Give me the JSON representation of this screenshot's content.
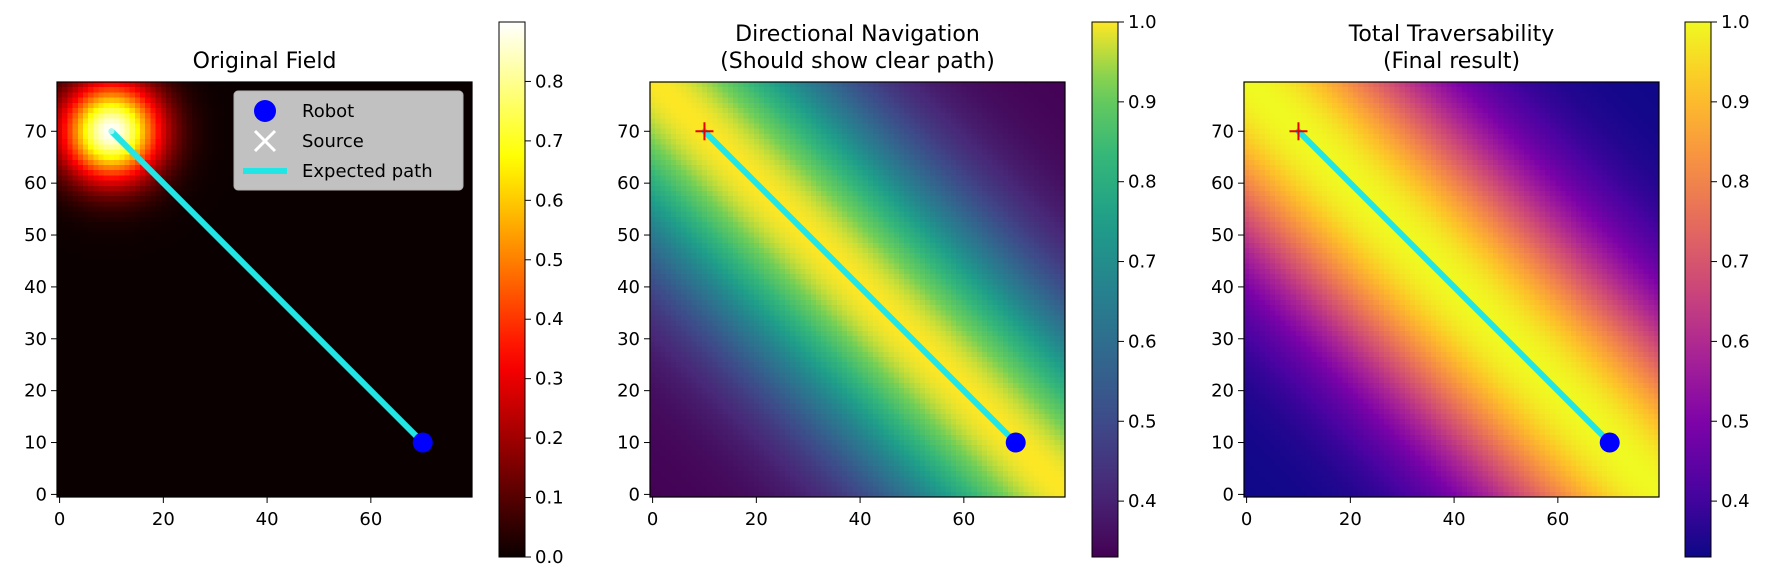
{
  "chart_data": [
    {
      "type": "heatmap",
      "title": "Original Field",
      "colormap": "hot",
      "xticks": [
        0,
        20,
        40,
        60
      ],
      "yticks": [
        0,
        10,
        20,
        30,
        40,
        50,
        60,
        70
      ],
      "xlim": [
        0,
        79
      ],
      "ylim": [
        0,
        79
      ],
      "field": {
        "kind": "gaussian_source",
        "center": [
          10,
          70
        ],
        "peak": 0.9,
        "sigma": 6.5
      },
      "colorbar": {
        "min": 0.0,
        "max": 0.9,
        "ticks": [
          "0.0",
          "0.1",
          "0.2",
          "0.3",
          "0.4",
          "0.5",
          "0.6",
          "0.7",
          "0.8"
        ]
      },
      "markers": {
        "robot": [
          70,
          10
        ],
        "source": [
          10,
          70
        ],
        "path": [
          [
            10,
            70
          ],
          [
            70,
            10
          ]
        ]
      },
      "legend": {
        "placement": "upper-right",
        "entries": [
          {
            "label": "Robot",
            "symbol": "circle",
            "color": "#0000ff"
          },
          {
            "label": "Source",
            "symbol": "x",
            "color": "#ffffff"
          },
          {
            "label": "Expected path",
            "symbol": "line",
            "color": "#22e5e5"
          }
        ]
      }
    },
    {
      "type": "heatmap",
      "title": "Directional Navigation",
      "subtitle": "(Should show clear path)",
      "colormap": "viridis",
      "xticks": [
        0,
        20,
        40,
        60
      ],
      "yticks": [
        0,
        10,
        20,
        30,
        40,
        50,
        60,
        70
      ],
      "xlim": [
        0,
        79
      ],
      "ylim": [
        0,
        79
      ],
      "field": {
        "kind": "corridor",
        "from": [
          10,
          70
        ],
        "to": [
          70,
          10
        ],
        "min": 0.33,
        "max": 1.0,
        "width": 17
      },
      "colorbar": {
        "min": 0.33,
        "max": 1.0,
        "ticks": [
          "0.4",
          "0.5",
          "0.6",
          "0.7",
          "0.8",
          "0.9",
          "1.0"
        ]
      },
      "markers": {
        "robot": [
          70,
          10
        ],
        "source": [
          10,
          70
        ],
        "path": [
          [
            10,
            70
          ],
          [
            70,
            10
          ]
        ]
      }
    },
    {
      "type": "heatmap",
      "title": "Total Traversability",
      "subtitle": "(Final result)",
      "colormap": "plasma",
      "xticks": [
        0,
        20,
        40,
        60
      ],
      "yticks": [
        0,
        10,
        20,
        30,
        40,
        50,
        60,
        70
      ],
      "xlim": [
        0,
        79
      ],
      "ylim": [
        0,
        79
      ],
      "field": {
        "kind": "corridor",
        "from": [
          10,
          70
        ],
        "to": [
          70,
          10
        ],
        "min": 0.33,
        "max": 1.0,
        "width": 17
      },
      "colorbar": {
        "min": 0.33,
        "max": 1.0,
        "ticks": [
          "0.4",
          "0.5",
          "0.6",
          "0.7",
          "0.8",
          "0.9",
          "1.0"
        ]
      },
      "markers": {
        "robot": [
          70,
          10
        ],
        "source": [
          10,
          70
        ],
        "path": [
          [
            10,
            70
          ],
          [
            70,
            10
          ]
        ]
      }
    }
  ]
}
